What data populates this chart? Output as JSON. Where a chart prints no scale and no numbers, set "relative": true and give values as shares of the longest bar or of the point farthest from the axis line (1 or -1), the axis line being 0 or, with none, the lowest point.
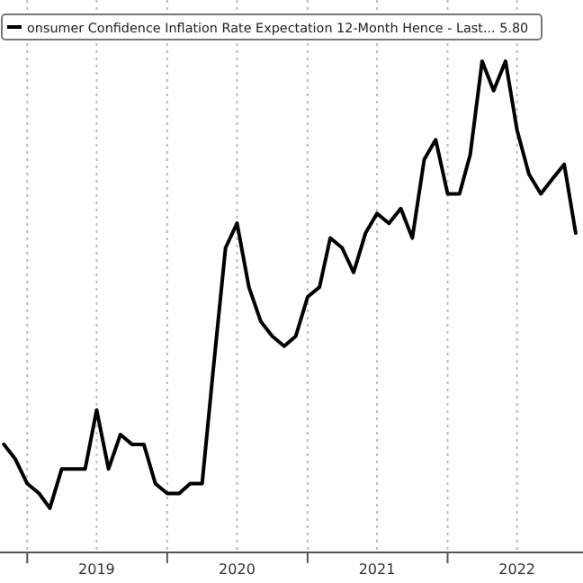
{
  "chart_data": {
    "type": "line",
    "relative": true,
    "x": [
      "2018-11",
      "2018-12",
      "2019-01",
      "2019-02",
      "2019-03",
      "2019-04",
      "2019-05",
      "2019-06",
      "2019-07",
      "2019-08",
      "2019-09",
      "2019-10",
      "2019-11",
      "2019-12",
      "2020-01",
      "2020-02",
      "2020-03",
      "2020-04",
      "2020-05",
      "2020-06",
      "2020-07",
      "2020-08",
      "2020-09",
      "2020-10",
      "2020-11",
      "2020-12",
      "2021-01",
      "2021-02",
      "2021-03",
      "2021-04",
      "2021-05",
      "2021-06",
      "2021-07",
      "2021-08",
      "2021-09",
      "2021-10",
      "2021-11",
      "2021-12",
      "2022-01",
      "2022-02",
      "2022-03",
      "2022-04",
      "2022-05",
      "2022-06",
      "2022-07",
      "2022-08",
      "2022-09",
      "2022-10",
      "2022-11",
      "2022-12"
    ],
    "series": [
      {
        "name": "onsumer Confidence Inflation Rate Expectation 12-Month Hence - Last... 5.80",
        "color": "#000000",
        "values": [
          0.22,
          0.19,
          0.14,
          0.12,
          0.09,
          0.17,
          0.17,
          0.17,
          0.29,
          0.17,
          0.24,
          0.22,
          0.22,
          0.14,
          0.12,
          0.12,
          0.14,
          0.14,
          0.38,
          0.62,
          0.67,
          0.54,
          0.47,
          0.44,
          0.42,
          0.44,
          0.52,
          0.54,
          0.64,
          0.62,
          0.57,
          0.65,
          0.69,
          0.67,
          0.7,
          0.64,
          0.8,
          0.84,
          0.73,
          0.73,
          0.81,
          1,
          0.94,
          1,
          0.86,
          0.77,
          0.73,
          0.76,
          0.79,
          0.65
        ]
      }
    ],
    "xlim": [
      "2018-10-22",
      "2022-12-20"
    ],
    "xticks": [
      {
        "value": "2019-01",
        "label": null
      },
      {
        "value": "2019-07",
        "label": "2019"
      },
      {
        "value": "2020-01",
        "label": null
      },
      {
        "value": "2020-07",
        "label": "2020"
      },
      {
        "value": "2021-01",
        "label": null
      },
      {
        "value": "2021-07",
        "label": "2021"
      },
      {
        "value": "2022-01",
        "label": null
      },
      {
        "value": "2022-07",
        "label": "2022"
      }
    ],
    "grid": "x",
    "legend": "top left",
    "line_style": "solid",
    "marker": "none"
  }
}
